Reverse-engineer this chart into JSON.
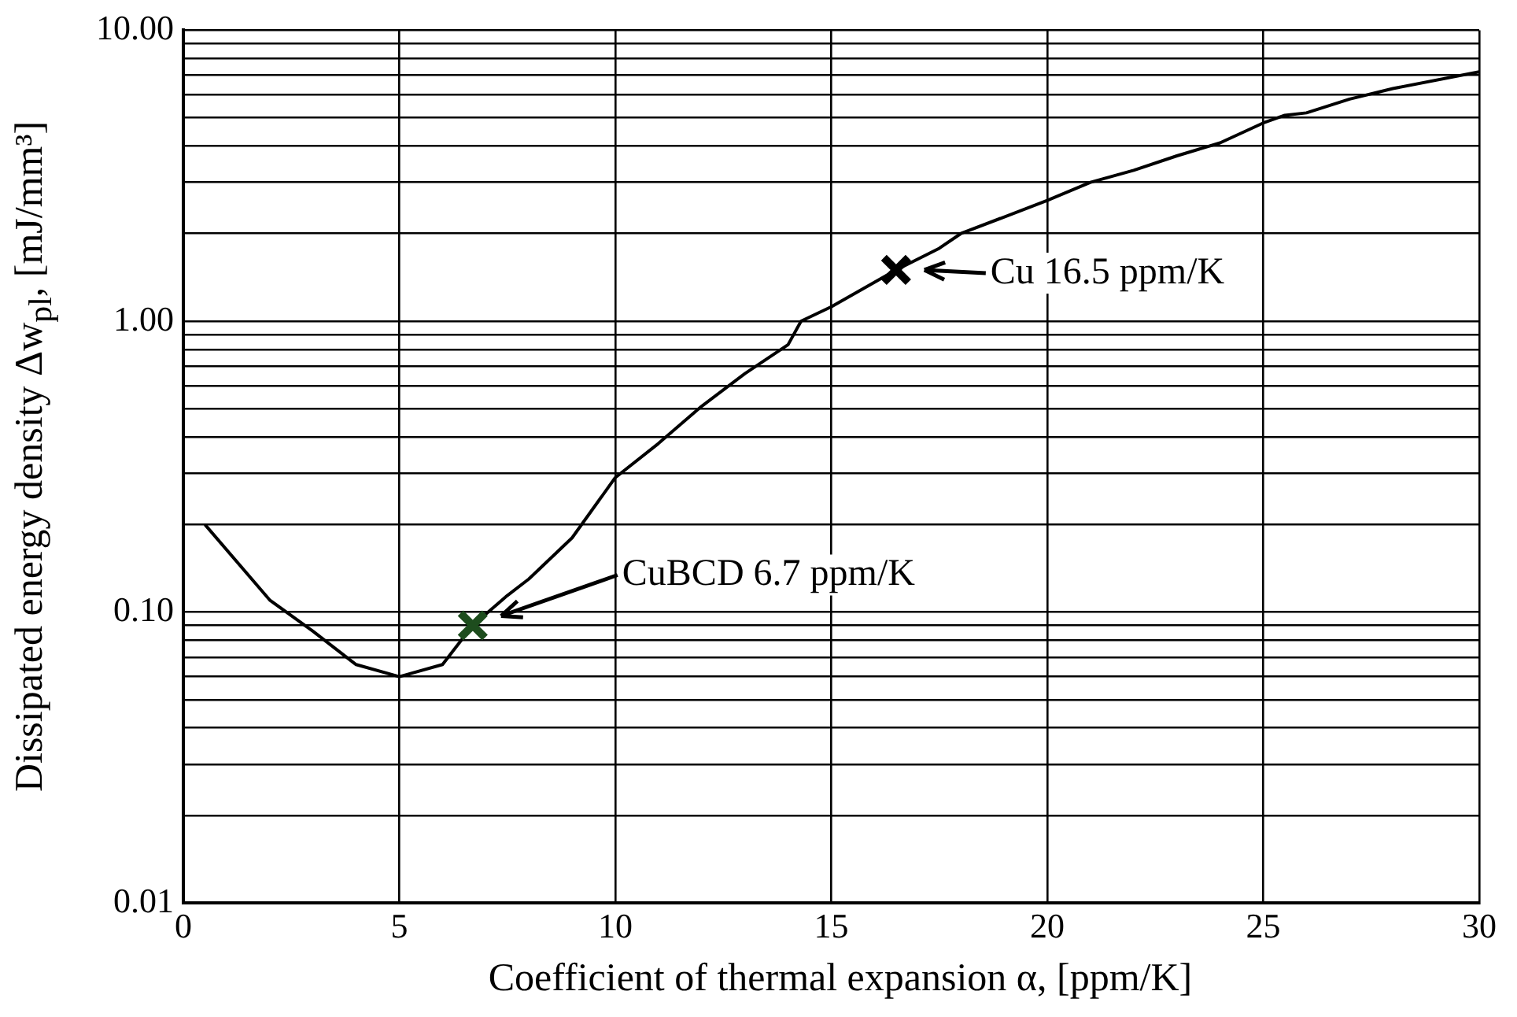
{
  "chart_data": {
    "type": "line",
    "xlabel": "Coefficient of thermal expansion  α, [ppm/K]",
    "ylabel": "Dissipated energy density Δw$_{pl}$, [mJ/mm³]",
    "series": [
      {
        "color": "#000000",
        "marker": "none",
        "x": [
          0.5,
          2,
          3,
          4,
          5,
          6,
          6.7,
          7.5,
          8,
          9,
          10,
          11,
          12,
          13,
          14,
          14.3,
          15,
          16.5,
          17.5,
          18,
          20,
          21,
          22,
          23,
          24,
          25,
          25.5,
          26,
          27,
          28,
          30
        ],
        "values": [
          0.2,
          0.11,
          0.086,
          0.066,
          0.06,
          0.066,
          0.09,
          0.114,
          0.13,
          0.18,
          0.29,
          0.38,
          0.51,
          0.66,
          0.83,
          1.0,
          1.12,
          1.5,
          1.78,
          2.0,
          2.6,
          3.0,
          3.3,
          3.7,
          4.1,
          4.8,
          5.1,
          5.2,
          5.8,
          6.3,
          7.2
        ]
      },
      {
        "type": "scatter",
        "color": "#1e4d1e",
        "marker": "cross",
        "x": [
          6.7
        ],
        "values": [
          0.09
        ]
      },
      {
        "type": "scatter",
        "color": "#000000",
        "marker": "cross",
        "x": [
          16.5
        ],
        "values": [
          1.5
        ]
      }
    ],
    "xlim": [
      0,
      30
    ],
    "xticks": [
      0,
      5,
      10,
      15,
      20,
      25,
      30
    ],
    "ylim": [
      0.01,
      10
    ],
    "log": "y",
    "yticks": [
      {
        "value": 0.01,
        "label": "0.01"
      },
      {
        "value": 0.02,
        "label": null
      },
      {
        "value": 0.03,
        "label": null
      },
      {
        "value": 0.04,
        "label": null
      },
      {
        "value": 0.05,
        "label": null
      },
      {
        "value": 0.06,
        "label": null
      },
      {
        "value": 0.07,
        "label": null
      },
      {
        "value": 0.08,
        "label": null
      },
      {
        "value": 0.09,
        "label": null
      },
      {
        "value": 0.1,
        "label": "0.10"
      },
      {
        "value": 0.2,
        "label": null
      },
      {
        "value": 0.3,
        "label": null
      },
      {
        "value": 0.4,
        "label": null
      },
      {
        "value": 0.5,
        "label": null
      },
      {
        "value": 0.6,
        "label": null
      },
      {
        "value": 0.7,
        "label": null
      },
      {
        "value": 0.8,
        "label": null
      },
      {
        "value": 0.9,
        "label": null
      },
      {
        "value": 1,
        "label": "1.00"
      },
      {
        "value": 2,
        "label": null
      },
      {
        "value": 3,
        "label": null
      },
      {
        "value": 4,
        "label": null
      },
      {
        "value": 5,
        "label": null
      },
      {
        "value": 6,
        "label": null
      },
      {
        "value": 7,
        "label": null
      },
      {
        "value": 8,
        "label": null
      },
      {
        "value": 9,
        "label": null
      },
      {
        "value": 10,
        "label": "10.00"
      }
    ],
    "grid": true,
    "legend": false,
    "annotations": [
      "CuBCD 6.7 ppm/K",
      "Cu 16.5 ppm/K"
    ]
  }
}
